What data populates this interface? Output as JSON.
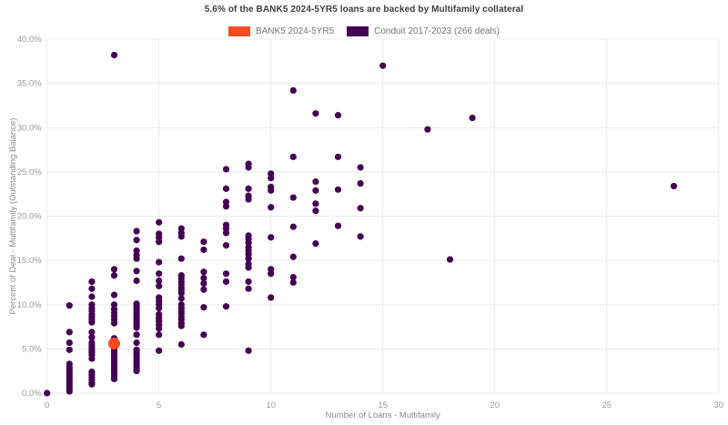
{
  "title": "5.6% of the BANK5 2024-5YR5 loans are backed by Multifamily collateral",
  "legend": [
    {
      "label": "BANK5 2024-5YR5",
      "color": "#fa4b21"
    },
    {
      "label": "Conduit 2017-2023 (266 deals)",
      "color": "#440154"
    }
  ],
  "chart_data": {
    "type": "scatter",
    "title": "5.6% of the BANK5 2024-5YR5 loans are backed by Multifamily collateral",
    "xlabel": "Number of Loans - Multifamily",
    "ylabel": "Percent of Deal - Multifamily (Outstanding Balance)",
    "xlim": [
      0,
      30
    ],
    "ylim": [
      0,
      40
    ],
    "grid": true,
    "legend_position": "top-center",
    "xticks": {
      "values": [
        0,
        5,
        10,
        15,
        20,
        25,
        30
      ],
      "labels": [
        "0",
        "5",
        "10",
        "15",
        "20",
        "25",
        "30"
      ]
    },
    "yticks": {
      "values": [
        0,
        5,
        10,
        15,
        20,
        25,
        30,
        35,
        40
      ],
      "labels": [
        "0.0%",
        "5.0%",
        "10.0%",
        "15.0%",
        "20.0%",
        "25.0%",
        "30.0%",
        "35.0%",
        "40.0%"
      ]
    },
    "series": [
      {
        "name": "Conduit 2017-2023 (266 deals)",
        "color": "#440154",
        "marker_radius": 3.6,
        "points": [
          [
            0,
            0.0
          ],
          [
            1,
            9.9
          ],
          [
            1,
            6.9
          ],
          [
            1,
            5.7
          ],
          [
            1,
            4.9
          ],
          [
            1,
            3.3
          ],
          [
            1,
            2.9
          ],
          [
            1,
            2.6
          ],
          [
            1,
            2.3
          ],
          [
            1,
            2.0
          ],
          [
            1,
            1.7
          ],
          [
            1,
            1.4
          ],
          [
            1,
            1.1
          ],
          [
            1,
            0.8
          ],
          [
            1,
            0.5
          ],
          [
            1,
            0.2
          ],
          [
            2,
            12.6
          ],
          [
            2,
            11.8
          ],
          [
            2,
            10.9
          ],
          [
            2,
            10.0
          ],
          [
            2,
            9.6
          ],
          [
            2,
            9.3
          ],
          [
            2,
            8.9
          ],
          [
            2,
            8.6
          ],
          [
            2,
            8.3
          ],
          [
            2,
            8.0
          ],
          [
            2,
            6.9
          ],
          [
            2,
            6.3
          ],
          [
            2,
            5.7
          ],
          [
            2,
            5.4
          ],
          [
            2,
            5.1
          ],
          [
            2,
            4.8
          ],
          [
            2,
            4.6
          ],
          [
            2,
            4.3
          ],
          [
            2,
            3.9
          ],
          [
            2,
            2.4
          ],
          [
            2,
            2.1
          ],
          [
            2,
            1.8
          ],
          [
            2,
            1.5
          ],
          [
            2,
            1.2
          ],
          [
            2,
            1.0
          ],
          [
            3,
            38.2
          ],
          [
            3,
            14.0
          ],
          [
            3,
            13.3
          ],
          [
            3,
            11.1
          ],
          [
            3,
            10.0
          ],
          [
            3,
            9.5
          ],
          [
            3,
            9.1
          ],
          [
            3,
            8.7
          ],
          [
            3,
            8.3
          ],
          [
            3,
            7.9
          ],
          [
            3,
            6.2
          ],
          [
            3,
            5.2
          ],
          [
            3,
            4.9
          ],
          [
            3,
            4.6
          ],
          [
            3,
            4.3
          ],
          [
            3,
            4.0
          ],
          [
            3,
            3.7
          ],
          [
            3,
            3.4
          ],
          [
            3,
            3.1
          ],
          [
            3,
            2.8
          ],
          [
            3,
            2.5
          ],
          [
            3,
            2.2
          ],
          [
            3,
            1.9
          ],
          [
            3,
            1.6
          ],
          [
            4,
            18.3
          ],
          [
            4,
            17.3
          ],
          [
            4,
            16.1
          ],
          [
            4,
            15.6
          ],
          [
            4,
            15.2
          ],
          [
            4,
            13.8
          ],
          [
            4,
            12.7
          ],
          [
            4,
            10.1
          ],
          [
            4,
            9.8
          ],
          [
            4,
            9.5
          ],
          [
            4,
            9.2
          ],
          [
            4,
            8.9
          ],
          [
            4,
            8.6
          ],
          [
            4,
            8.3
          ],
          [
            4,
            8.0
          ],
          [
            4,
            7.7
          ],
          [
            4,
            7.4
          ],
          [
            4,
            6.6
          ],
          [
            4,
            5.7
          ],
          [
            4,
            4.9
          ],
          [
            4,
            4.6
          ],
          [
            4,
            4.3
          ],
          [
            4,
            4.0
          ],
          [
            4,
            3.7
          ],
          [
            4,
            3.4
          ],
          [
            4,
            3.1
          ],
          [
            4,
            2.8
          ],
          [
            4,
            2.5
          ],
          [
            5,
            19.3
          ],
          [
            5,
            18.0
          ],
          [
            5,
            17.6
          ],
          [
            5,
            17.1
          ],
          [
            5,
            14.8
          ],
          [
            5,
            13.5
          ],
          [
            5,
            12.7
          ],
          [
            5,
            12.1
          ],
          [
            5,
            10.8
          ],
          [
            5,
            10.4
          ],
          [
            5,
            10.0
          ],
          [
            5,
            9.6
          ],
          [
            5,
            8.9
          ],
          [
            5,
            8.5
          ],
          [
            5,
            8.1
          ],
          [
            5,
            7.7
          ],
          [
            5,
            7.3
          ],
          [
            5,
            6.6
          ],
          [
            5,
            4.8
          ],
          [
            6,
            18.6
          ],
          [
            6,
            18.1
          ],
          [
            6,
            17.7
          ],
          [
            6,
            15.2
          ],
          [
            6,
            13.3
          ],
          [
            6,
            13.0
          ],
          [
            6,
            12.6
          ],
          [
            6,
            12.3
          ],
          [
            6,
            11.9
          ],
          [
            6,
            11.6
          ],
          [
            6,
            11.3
          ],
          [
            6,
            10.7
          ],
          [
            6,
            10.0
          ],
          [
            6,
            9.6
          ],
          [
            6,
            9.3
          ],
          [
            6,
            9.0
          ],
          [
            6,
            8.6
          ],
          [
            6,
            8.3
          ],
          [
            6,
            7.9
          ],
          [
            6,
            7.6
          ],
          [
            6,
            5.5
          ],
          [
            7,
            17.1
          ],
          [
            7,
            16.2
          ],
          [
            7,
            13.7
          ],
          [
            7,
            13.0
          ],
          [
            7,
            12.4
          ],
          [
            7,
            11.7
          ],
          [
            7,
            9.7
          ],
          [
            7,
            6.6
          ],
          [
            8,
            25.3
          ],
          [
            8,
            23.1
          ],
          [
            8,
            21.6
          ],
          [
            8,
            21.1
          ],
          [
            8,
            19.0
          ],
          [
            8,
            18.6
          ],
          [
            8,
            18.1
          ],
          [
            8,
            16.7
          ],
          [
            8,
            13.5
          ],
          [
            8,
            12.6
          ],
          [
            8,
            9.8
          ],
          [
            9,
            25.9
          ],
          [
            9,
            25.5
          ],
          [
            9,
            23.1
          ],
          [
            9,
            22.3
          ],
          [
            9,
            21.9
          ],
          [
            9,
            17.8
          ],
          [
            9,
            17.4
          ],
          [
            9,
            17.0
          ],
          [
            9,
            16.5
          ],
          [
            9,
            16.1
          ],
          [
            9,
            15.7
          ],
          [
            9,
            15.2
          ],
          [
            9,
            14.6
          ],
          [
            9,
            14.2
          ],
          [
            9,
            12.6
          ],
          [
            9,
            11.8
          ],
          [
            9,
            4.8
          ],
          [
            10,
            24.8
          ],
          [
            10,
            24.3
          ],
          [
            10,
            23.3
          ],
          [
            10,
            22.9
          ],
          [
            10,
            21.0
          ],
          [
            10,
            17.6
          ],
          [
            10,
            14.0
          ],
          [
            10,
            13.5
          ],
          [
            10,
            10.8
          ],
          [
            11,
            34.2
          ],
          [
            11,
            26.7
          ],
          [
            11,
            22.1
          ],
          [
            11,
            18.8
          ],
          [
            11,
            15.4
          ],
          [
            11,
            13.1
          ],
          [
            11,
            12.5
          ],
          [
            12,
            31.6
          ],
          [
            12,
            23.9
          ],
          [
            12,
            22.9
          ],
          [
            12,
            21.4
          ],
          [
            12,
            20.6
          ],
          [
            12,
            16.9
          ],
          [
            13,
            31.4
          ],
          [
            13,
            26.7
          ],
          [
            13,
            23.0
          ],
          [
            13,
            18.9
          ],
          [
            14,
            25.5
          ],
          [
            14,
            23.7
          ],
          [
            14,
            20.9
          ],
          [
            14,
            17.7
          ],
          [
            15,
            37.0
          ],
          [
            17,
            29.8
          ],
          [
            18,
            15.1
          ],
          [
            19,
            31.1
          ],
          [
            28,
            23.4
          ]
        ]
      },
      {
        "name": "BANK5 2024-5YR5",
        "color": "#fa4b21",
        "marker_radius": 6.5,
        "points": [
          [
            3,
            5.6
          ]
        ]
      }
    ]
  },
  "colors": {
    "grid": "#ebebeb",
    "tick_label": "#999999",
    "axis_title": "#8a8a8a",
    "title_text": "#3d3d3d",
    "background": "#ffffff"
  }
}
